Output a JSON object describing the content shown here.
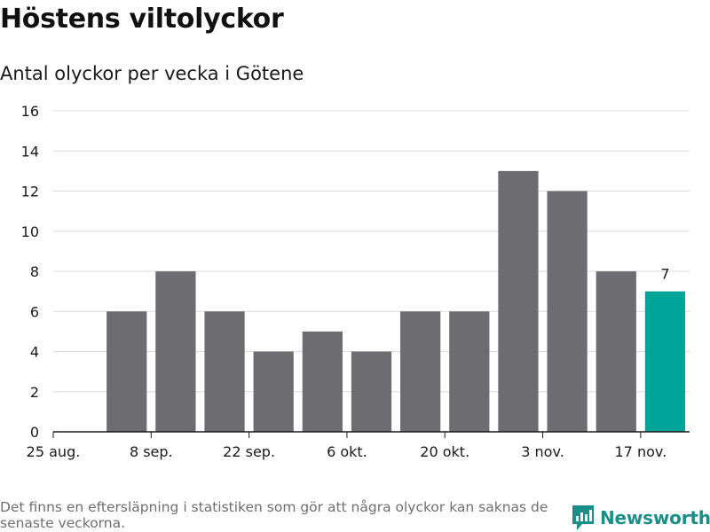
{
  "header": {
    "title": "Höstens viltolyckor",
    "subtitle": "Antal olyckor per vecka i Götene"
  },
  "chart_data": {
    "type": "bar",
    "title": "Höstens viltolyckor",
    "subtitle": "Antal olyckor per vecka i Götene",
    "xlabel": "",
    "ylabel": "",
    "categories": [
      "25 aug.",
      "1 sep.",
      "8 sep.",
      "15 sep.",
      "22 sep.",
      "29 sep.",
      "6 okt.",
      "13 okt.",
      "20 okt.",
      "27 okt.",
      "3 nov.",
      "10 nov.",
      "17 nov."
    ],
    "x_tick_labels": [
      "25 aug.",
      "8 sep.",
      "22 sep.",
      "6 okt.",
      "20 okt.",
      "3 nov.",
      "17 nov."
    ],
    "values": [
      null,
      6,
      8,
      6,
      4,
      5,
      4,
      6,
      6,
      13,
      12,
      8,
      7
    ],
    "ylim": [
      0,
      16
    ],
    "y_ticks": [
      0,
      2,
      4,
      6,
      8,
      10,
      12,
      14,
      16
    ],
    "grid": true,
    "highlight_index": 12,
    "highlight_label": "7",
    "bar_color": "#6d6c70",
    "highlight_color": "#00a59a"
  },
  "footer": {
    "note": "Det finns en eftersläpning i statistiken som gör att några olyckor kan saknas de senaste veckorna.",
    "brand": "Newsworthy",
    "brand_color": "#1a8f8a"
  }
}
